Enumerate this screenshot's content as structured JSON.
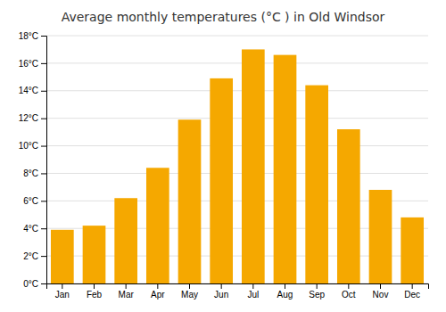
{
  "chart_data": {
    "type": "bar",
    "title": "Average monthly temperatures (°C ) in Old Windsor",
    "categories": [
      "Jan",
      "Feb",
      "Mar",
      "Apr",
      "May",
      "Jun",
      "Jul",
      "Aug",
      "Sep",
      "Oct",
      "Nov",
      "Dec"
    ],
    "values": [
      3.9,
      4.2,
      6.2,
      8.4,
      11.9,
      14.9,
      17.0,
      16.6,
      14.4,
      11.2,
      6.8,
      4.8
    ],
    "color": "#F5A800",
    "ylim": [
      0,
      18
    ],
    "yticks": [
      {
        "value": 0,
        "label": "0°C"
      },
      {
        "value": 2,
        "label": "2°C"
      },
      {
        "value": 4,
        "label": "4°C"
      },
      {
        "value": 6,
        "label": "6°C"
      },
      {
        "value": 8,
        "label": "8°C"
      },
      {
        "value": 10,
        "label": "10°C"
      },
      {
        "value": 12,
        "label": "12°C"
      },
      {
        "value": 14,
        "label": "14°C"
      },
      {
        "value": 16,
        "label": "16°C"
      },
      {
        "value": 18,
        "label": "18°C"
      }
    ],
    "grid": true
  }
}
